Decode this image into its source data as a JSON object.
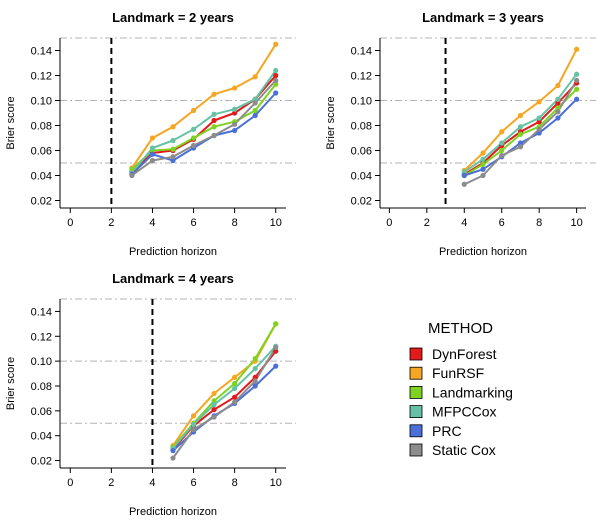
{
  "method_colors": {
    "DynForest": "#e31a1c",
    "FunRSF": "#f5a623",
    "Landmarking": "#7ed321",
    "MFPCCox": "#66c2a5",
    "PRC": "#4a6fd8",
    "Static Cox": "#8c8c8c"
  },
  "legend": {
    "title": "METHOD",
    "items": [
      "DynForest",
      "FunRSF",
      "Landmarking",
      "MFPCCox",
      "PRC",
      "Static Cox"
    ]
  },
  "chart_data": [
    {
      "type": "line",
      "title": "Landmark = 2 years",
      "xlabel": "Prediction horizon",
      "ylabel": "Brier score",
      "xlim": [
        -0.5,
        10.5
      ],
      "ylim": [
        0.014,
        0.15
      ],
      "xticks": [
        0,
        2,
        4,
        6,
        8,
        10
      ],
      "yticks": [
        0.02,
        0.04,
        0.06,
        0.08,
        0.1,
        0.12,
        0.14
      ],
      "reference_lines_y": [
        0.05,
        0.1,
        0.15
      ],
      "landmark_x": 2,
      "x": [
        3,
        4,
        5,
        6,
        7,
        8,
        9,
        10
      ],
      "series": [
        {
          "name": "DynForest",
          "values": [
            0.043,
            0.058,
            0.06,
            0.069,
            0.084,
            0.09,
            0.101,
            0.12
          ]
        },
        {
          "name": "FunRSF",
          "values": [
            0.046,
            0.07,
            0.079,
            0.092,
            0.105,
            0.11,
            0.119,
            0.145
          ]
        },
        {
          "name": "Landmarking",
          "values": [
            0.045,
            0.06,
            0.061,
            0.07,
            0.079,
            0.083,
            0.092,
            0.113
          ]
        },
        {
          "name": "MFPCCox",
          "values": [
            0.042,
            0.062,
            0.068,
            0.077,
            0.089,
            0.093,
            0.101,
            0.124
          ]
        },
        {
          "name": "PRC",
          "values": [
            0.041,
            0.057,
            0.052,
            0.062,
            0.072,
            0.076,
            0.088,
            0.106
          ]
        },
        {
          "name": "Static Cox",
          "values": [
            0.04,
            0.052,
            0.055,
            0.064,
            0.072,
            0.081,
            0.098,
            0.116
          ]
        }
      ]
    },
    {
      "type": "line",
      "title": "Landmark = 3 years",
      "xlabel": "Prediction horizon",
      "ylabel": "Brier score",
      "xlim": [
        -0.5,
        10.5
      ],
      "ylim": [
        0.014,
        0.15
      ],
      "xticks": [
        0,
        2,
        4,
        6,
        8,
        10
      ],
      "yticks": [
        0.02,
        0.04,
        0.06,
        0.08,
        0.1,
        0.12,
        0.14
      ],
      "reference_lines_y": [
        0.05,
        0.1,
        0.15
      ],
      "landmark_x": 3,
      "x": [
        4,
        5,
        6,
        7,
        8,
        9,
        10
      ],
      "series": [
        {
          "name": "DynForest",
          "values": [
            0.041,
            0.05,
            0.064,
            0.075,
            0.083,
            0.098,
            0.114
          ]
        },
        {
          "name": "FunRSF",
          "values": [
            0.044,
            0.058,
            0.075,
            0.088,
            0.099,
            0.112,
            0.141
          ]
        },
        {
          "name": "Landmarking",
          "values": [
            0.04,
            0.049,
            0.06,
            0.073,
            0.079,
            0.094,
            0.109
          ]
        },
        {
          "name": "MFPCCox",
          "values": [
            0.043,
            0.053,
            0.066,
            0.079,
            0.086,
            0.101,
            0.121
          ]
        },
        {
          "name": "PRC",
          "values": [
            0.04,
            0.045,
            0.055,
            0.066,
            0.074,
            0.086,
            0.101
          ]
        },
        {
          "name": "Static Cox",
          "values": [
            0.033,
            0.04,
            0.056,
            0.063,
            0.077,
            0.091,
            0.116
          ]
        }
      ]
    },
    {
      "type": "line",
      "title": "Landmark = 4 years",
      "xlabel": "Prediction horizon",
      "ylabel": "Brier score",
      "xlim": [
        -0.5,
        10.5
      ],
      "ylim": [
        0.014,
        0.15
      ],
      "xticks": [
        0,
        2,
        4,
        6,
        8,
        10
      ],
      "yticks": [
        0.02,
        0.04,
        0.06,
        0.08,
        0.1,
        0.12,
        0.14
      ],
      "reference_lines_y": [
        0.05,
        0.1,
        0.15
      ],
      "landmark_x": 4,
      "x": [
        5,
        6,
        7,
        8,
        9,
        10
      ],
      "series": [
        {
          "name": "DynForest",
          "values": [
            0.029,
            0.048,
            0.061,
            0.071,
            0.087,
            0.108
          ]
        },
        {
          "name": "FunRSF",
          "values": [
            0.032,
            0.056,
            0.074,
            0.087,
            0.1,
            0.13
          ]
        },
        {
          "name": "Landmarking",
          "values": [
            0.031,
            0.05,
            0.068,
            0.082,
            0.102,
            0.13
          ]
        },
        {
          "name": "MFPCCox",
          "values": [
            0.03,
            0.049,
            0.065,
            0.078,
            0.094,
            0.112
          ]
        },
        {
          "name": "PRC",
          "values": [
            0.028,
            0.043,
            0.056,
            0.066,
            0.08,
            0.096
          ]
        },
        {
          "name": "Static Cox",
          "values": [
            0.022,
            0.045,
            0.055,
            0.067,
            0.084,
            0.111
          ]
        }
      ]
    }
  ]
}
